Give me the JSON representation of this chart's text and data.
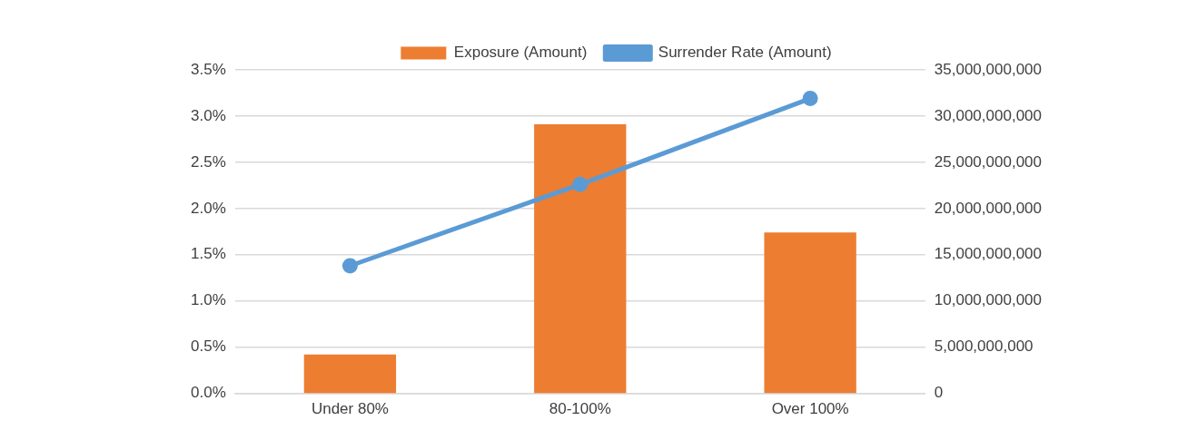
{
  "chart_data": {
    "type": "bar",
    "categories": [
      "Under 80%",
      "80-100%",
      "Over 100%"
    ],
    "series": [
      {
        "name": "Exposure (Amount)",
        "axis": "y2",
        "color": "#ed7d31",
        "values": [
          4200000000,
          29100000000,
          17400000000
        ]
      },
      {
        "name": "Surrender Rate (Amount)",
        "type": "line",
        "color": "#5b9bd5",
        "values": [
          1.38,
          2.26,
          3.19
        ]
      }
    ],
    "ylim": [
      0,
      3.5
    ],
    "yticks": [
      {
        "value": 0,
        "label": "0.0%"
      },
      {
        "value": 0.5,
        "label": "0.5%"
      },
      {
        "value": 1,
        "label": "1.0%"
      },
      {
        "value": 1.5,
        "label": "1.5%"
      },
      {
        "value": 2,
        "label": "2.0%"
      },
      {
        "value": 2.5,
        "label": "2.5%"
      },
      {
        "value": 3,
        "label": "3.0%"
      },
      {
        "value": 3.5,
        "label": "3.5%"
      }
    ],
    "y2lim": [
      0,
      35000000000
    ],
    "y2ticks": [
      0,
      {
        "value": 5000000000,
        "label": "5,000,000,000"
      },
      {
        "value": 10000000000,
        "label": "10,000,000,000"
      },
      {
        "value": 15000000000,
        "label": "15,000,000,000"
      },
      {
        "value": 20000000000,
        "label": "20,000,000,000"
      },
      {
        "value": 25000000000,
        "label": "25,000,000,000"
      },
      {
        "value": 30000000000,
        "label": "30,000,000,000"
      },
      {
        "value": 35000000000,
        "label": "35,000,000,000"
      }
    ],
    "grid": "y",
    "legend": "top",
    "marker": "circle",
    "line_style": "solid"
  }
}
